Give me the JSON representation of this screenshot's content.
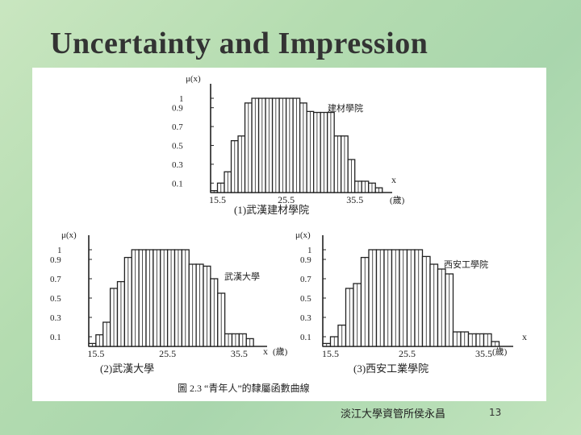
{
  "slide": {
    "title": "Uncertainty and Impression",
    "footer": "淡江大學資管所侯永昌",
    "page_number": "13",
    "figure_caption": "圖 2.3 “青年人”的隸屬函數曲線",
    "colors": {
      "ink": "#222222",
      "figure_bg": "#ffffff",
      "title": "#333333"
    }
  },
  "chart_data": [
    {
      "type": "bar",
      "caption": "(1)武漢建材學院",
      "legend_label": "建材學院",
      "ylabel": "μ(x)",
      "xlabel": "x",
      "x_unit": "(歲)",
      "y_ticks": [
        "1",
        "0.9",
        "0.7",
        "0.5",
        "0.3",
        "0.1"
      ],
      "x_ticks": [
        "15.5",
        "25.5",
        "35.5"
      ],
      "ylim": [
        0,
        1
      ],
      "x": [
        15,
        16,
        17,
        18,
        19,
        20,
        21,
        22,
        23,
        24,
        25,
        26,
        27,
        28,
        29,
        30,
        31,
        32,
        33,
        34,
        35,
        36,
        37,
        38,
        39
      ],
      "values": [
        0.02,
        0.1,
        0.22,
        0.55,
        0.6,
        0.95,
        1,
        1,
        1,
        1,
        1,
        1,
        1,
        0.95,
        0.86,
        0.85,
        0.85,
        0.85,
        0.6,
        0.6,
        0.35,
        0.12,
        0.12,
        0.1,
        0.05
      ]
    },
    {
      "type": "bar",
      "caption": "(2)武漢大學",
      "legend_label": "武漢大學",
      "ylabel": "μ(x)",
      "xlabel": "x",
      "x_unit": "(歲)",
      "y_ticks": [
        "1",
        "0.9",
        "0.7",
        "0.5",
        "0.3",
        "0.1"
      ],
      "x_ticks": [
        "15.5",
        "25.5",
        "35.5"
      ],
      "ylim": [
        0,
        1
      ],
      "x": [
        15,
        16,
        17,
        18,
        19,
        20,
        21,
        22,
        23,
        24,
        25,
        26,
        27,
        28,
        29,
        30,
        31,
        32,
        33,
        34,
        35,
        36,
        37
      ],
      "values": [
        0.03,
        0.12,
        0.25,
        0.6,
        0.67,
        0.92,
        1,
        1,
        1,
        1,
        1,
        1,
        1,
        1,
        0.85,
        0.85,
        0.83,
        0.7,
        0.55,
        0.13,
        0.13,
        0.13,
        0.08
      ]
    },
    {
      "type": "bar",
      "caption": "(3)西安工業學院",
      "legend_label": "西安工學院",
      "ylabel": "μ(x)",
      "xlabel": "x",
      "x_unit": "(歲)",
      "y_ticks": [
        "1",
        "0.9",
        "0.7",
        "0.5",
        "0.3",
        "0.1"
      ],
      "x_ticks": [
        "15.5",
        "25.5",
        "35.5"
      ],
      "ylim": [
        0,
        1
      ],
      "x": [
        15,
        16,
        17,
        18,
        19,
        20,
        21,
        22,
        23,
        24,
        25,
        26,
        27,
        28,
        29,
        30,
        31,
        32,
        33,
        34,
        35,
        36,
        37
      ],
      "values": [
        0.03,
        0.1,
        0.22,
        0.6,
        0.65,
        0.92,
        1,
        1,
        1,
        1,
        1,
        1,
        1,
        0.93,
        0.85,
        0.8,
        0.75,
        0.15,
        0.15,
        0.13,
        0.13,
        0.13,
        0.05
      ]
    }
  ]
}
